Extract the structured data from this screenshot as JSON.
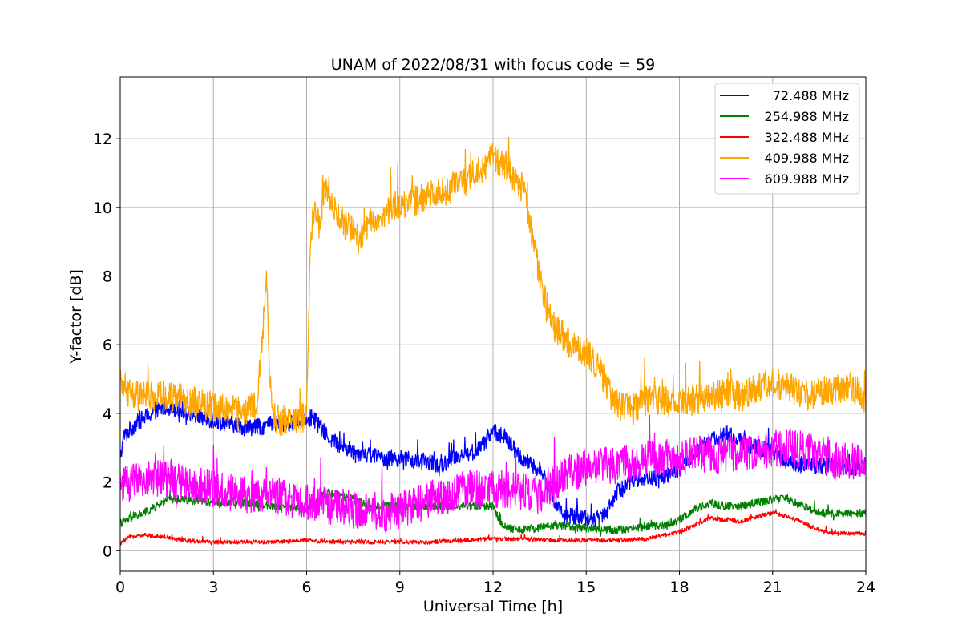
{
  "chart_data": {
    "type": "line",
    "title": "UNAM of 2022/08/31 with focus code = 59",
    "xlabel": "Universal Time [h]",
    "ylabel": "Y-factor [dB]",
    "xlim": [
      0,
      24
    ],
    "ylim": [
      -0.6,
      13.8
    ],
    "xticks": [
      0,
      3,
      6,
      9,
      12,
      15,
      18,
      21,
      24
    ],
    "yticks": [
      0,
      2,
      4,
      6,
      8,
      10,
      12
    ],
    "grid": true,
    "legend_position": "top-right",
    "series": [
      {
        "name": " 72.488 MHz",
        "color": "#0000ff",
        "noise": 0.25,
        "x": [
          0,
          0.1,
          0.5,
          1,
          1.5,
          2,
          2.5,
          3,
          3.5,
          4,
          4.5,
          5,
          5.5,
          6,
          6.3,
          6.6,
          7,
          7.5,
          8,
          8.5,
          9,
          9.5,
          10,
          10.3,
          10.6,
          11,
          11.5,
          12,
          12.4,
          12.8,
          13.2,
          13.5,
          14,
          14.3,
          14.8,
          15.3,
          15.6,
          16,
          16.5,
          17,
          17.5,
          18,
          18.5,
          19,
          19.5,
          20,
          20.5,
          21,
          21.5,
          22,
          22.5,
          23,
          23.5,
          24
        ],
        "y": [
          2.6,
          3.3,
          3.7,
          4.0,
          4.2,
          4.1,
          3.9,
          3.8,
          3.7,
          3.6,
          3.6,
          3.7,
          3.7,
          3.9,
          3.8,
          3.4,
          3.1,
          2.9,
          2.8,
          2.7,
          2.7,
          2.6,
          2.6,
          2.4,
          2.7,
          2.8,
          2.9,
          3.5,
          3.3,
          2.8,
          2.5,
          2.4,
          1.4,
          1.0,
          1.0,
          0.9,
          1.1,
          1.7,
          2.1,
          2.1,
          2.1,
          2.4,
          2.9,
          3.2,
          3.4,
          3.2,
          3.0,
          2.9,
          2.6,
          2.5,
          2.5,
          2.5,
          2.4,
          2.5
        ]
      },
      {
        "name": "254.988 MHz",
        "color": "#008000",
        "noise": 0.12,
        "x": [
          0,
          0.5,
          1,
          1.5,
          2,
          3,
          4,
          5,
          6,
          6.3,
          6.6,
          7,
          7.5,
          8,
          9,
          10,
          11,
          12,
          12.3,
          12.8,
          13,
          14,
          15,
          16,
          17,
          17.5,
          18,
          18.5,
          19,
          19.5,
          20,
          20.5,
          21,
          21.5,
          22,
          22.5,
          23,
          24
        ],
        "y": [
          0.8,
          1.0,
          1.2,
          1.5,
          1.5,
          1.4,
          1.4,
          1.3,
          1.2,
          1.4,
          1.7,
          1.6,
          1.5,
          1.3,
          1.3,
          1.3,
          1.3,
          1.3,
          0.7,
          0.6,
          0.6,
          0.75,
          0.65,
          0.6,
          0.7,
          0.75,
          0.9,
          1.2,
          1.4,
          1.3,
          1.3,
          1.4,
          1.5,
          1.5,
          1.3,
          1.1,
          1.1,
          1.1
        ]
      },
      {
        "name": "322.488 MHz",
        "color": "#ff0000",
        "noise": 0.06,
        "x": [
          0,
          0.3,
          0.8,
          1.5,
          2,
          3,
          4,
          5,
          6,
          7,
          8,
          9,
          10,
          11,
          12,
          13,
          14,
          15,
          16,
          17,
          17.5,
          18,
          18.5,
          19,
          19.5,
          20,
          20.5,
          21,
          21.5,
          22,
          22.5,
          23,
          24
        ],
        "y": [
          0.2,
          0.4,
          0.45,
          0.4,
          0.3,
          0.25,
          0.25,
          0.25,
          0.3,
          0.25,
          0.25,
          0.25,
          0.25,
          0.3,
          0.35,
          0.35,
          0.3,
          0.3,
          0.3,
          0.35,
          0.45,
          0.55,
          0.75,
          0.95,
          0.9,
          0.85,
          1.0,
          1.1,
          1.0,
          0.8,
          0.6,
          0.5,
          0.5
        ]
      },
      {
        "name": "409.988 MHz",
        "color": "#ffa500",
        "noise": 0.45,
        "x": [
          0,
          0.5,
          1,
          1.5,
          2,
          2.5,
          3,
          3.5,
          4,
          4.4,
          4.6,
          4.7,
          4.8,
          4.9,
          5.1,
          5.5,
          6,
          6.1,
          6.2,
          6.3,
          6.4,
          6.6,
          7,
          7.5,
          7.7,
          8,
          8.5,
          9,
          9.5,
          10,
          10.5,
          11,
          11.5,
          12,
          12.3,
          12.6,
          13,
          13.3,
          13.6,
          14,
          14.5,
          15,
          15.5,
          15.8,
          16,
          16.5,
          17,
          17.5,
          18,
          18.5,
          19,
          19.5,
          20,
          20.5,
          21,
          21.5,
          22,
          22.5,
          23,
          23.5,
          24
        ],
        "y": [
          4.8,
          4.5,
          4.5,
          4.5,
          4.4,
          4.3,
          4.2,
          4.1,
          4.1,
          4.2,
          6.5,
          8.0,
          5.5,
          3.9,
          3.8,
          3.8,
          3.9,
          8.0,
          10.0,
          9.8,
          9.5,
          10.5,
          9.7,
          9.3,
          9.0,
          9.6,
          9.8,
          10.1,
          10.2,
          10.4,
          10.5,
          10.7,
          11.0,
          11.5,
          11.3,
          11.0,
          10.5,
          9.0,
          7.5,
          6.5,
          6.0,
          5.8,
          5.2,
          4.5,
          4.2,
          4.1,
          4.4,
          4.4,
          4.3,
          4.4,
          4.5,
          4.6,
          4.5,
          4.7,
          4.9,
          4.8,
          4.5,
          4.6,
          4.7,
          4.8,
          4.4
        ]
      },
      {
        "name": "609.988 MHz",
        "color": "#ff00ff",
        "noise": 0.55,
        "x": [
          0,
          0.5,
          1,
          1.5,
          2,
          2.5,
          3,
          3.5,
          4,
          4.5,
          5,
          5.5,
          6,
          6.5,
          7,
          7.5,
          8,
          8.5,
          9,
          9.5,
          10,
          10.5,
          11,
          11.5,
          12,
          12.5,
          13,
          13.5,
          14,
          14.5,
          15,
          15.5,
          16,
          16.5,
          17,
          17.5,
          18,
          18.5,
          19,
          19.5,
          20,
          20.5,
          21,
          21.5,
          22,
          22.5,
          23,
          23.5,
          24
        ],
        "y": [
          1.9,
          2.0,
          2.1,
          2.1,
          2.0,
          1.9,
          1.8,
          1.7,
          1.6,
          1.6,
          1.6,
          1.5,
          1.4,
          1.3,
          1.3,
          1.2,
          1.2,
          1.1,
          1.2,
          1.3,
          1.5,
          1.6,
          1.8,
          1.8,
          1.8,
          1.8,
          1.7,
          1.6,
          2.0,
          2.3,
          2.4,
          2.5,
          2.5,
          2.6,
          2.7,
          2.7,
          2.7,
          2.8,
          2.8,
          2.8,
          2.9,
          2.9,
          3.0,
          3.0,
          2.9,
          2.8,
          2.6,
          2.6,
          2.6
        ]
      }
    ]
  }
}
